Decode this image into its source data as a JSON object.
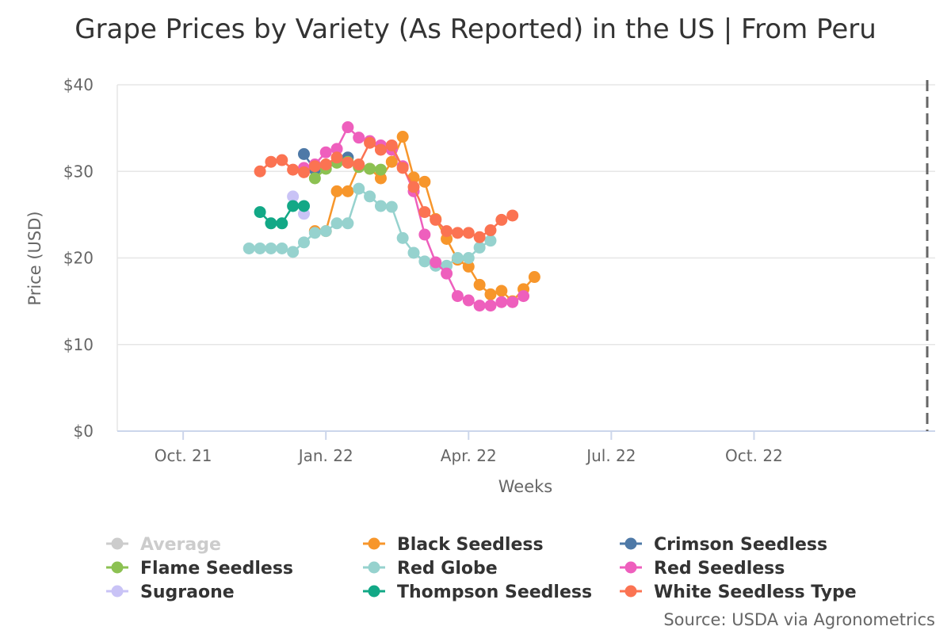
{
  "chart_data": {
    "type": "line",
    "title": "Grape Prices by Variety (As Reported) in the US | From Peru",
    "xlabel": "Weeks",
    "ylabel": "Price (USD)",
    "x_ticks": [
      "Oct. 21",
      "Jan. 22",
      "Apr. 22",
      "Jul. 22",
      "Oct. 22"
    ],
    "y_ticks": [
      "$0",
      "$10",
      "$20",
      "$30",
      "$40"
    ],
    "ylim": [
      0,
      40
    ],
    "x_unit": "weeks since 2021-10-04 (Oct. 21 tick = 0)",
    "x_range": [
      -6,
      68.5
    ],
    "grid": true,
    "legend_position": "bottom",
    "source": "Source: USDA via Agronometrics",
    "series": [
      {
        "name": "Average",
        "color": "#cccccc",
        "hidden": true,
        "points": []
      },
      {
        "name": "Black Seedless",
        "color": "#f7962b",
        "points": [
          [
            12,
            23.1
          ],
          [
            13,
            23.1
          ],
          [
            14,
            27.7
          ],
          [
            15,
            27.7
          ],
          [
            16,
            30.6
          ],
          [
            17,
            30.3
          ],
          [
            18,
            29.2
          ],
          [
            19,
            31.1
          ],
          [
            20,
            34.0
          ],
          [
            21,
            29.3
          ],
          [
            22,
            28.8
          ],
          [
            23,
            24.5
          ],
          [
            24,
            22.2
          ],
          [
            25,
            19.8
          ],
          [
            26,
            19.0
          ],
          [
            27,
            16.9
          ],
          [
            28,
            15.8
          ],
          [
            29,
            16.2
          ],
          [
            30,
            15.0
          ],
          [
            31,
            16.4
          ],
          [
            32,
            17.8
          ]
        ]
      },
      {
        "name": "Crimson Seedless",
        "color": "#4e79a7",
        "points": [
          [
            11,
            32.0
          ],
          [
            12,
            30.2
          ],
          [
            15,
            31.6
          ]
        ]
      },
      {
        "name": "Flame Seedless",
        "color": "#8cc152",
        "points": [
          [
            12,
            29.2
          ],
          [
            13,
            30.3
          ],
          [
            14,
            31.0
          ],
          [
            15,
            31.1
          ],
          [
            16,
            30.5
          ],
          [
            17,
            30.3
          ],
          [
            18,
            30.2
          ]
        ]
      },
      {
        "name": "Red Globe",
        "color": "#96d2ce",
        "points": [
          [
            6,
            21.1
          ],
          [
            7,
            21.1
          ],
          [
            8,
            21.1
          ],
          [
            9,
            21.1
          ],
          [
            10,
            20.7
          ],
          [
            11,
            21.8
          ],
          [
            12,
            22.9
          ],
          [
            13,
            23.1
          ],
          [
            14,
            24.0
          ],
          [
            15,
            24.0
          ],
          [
            16,
            28.0
          ],
          [
            17,
            27.1
          ],
          [
            18,
            26.0
          ],
          [
            19,
            25.9
          ],
          [
            20,
            22.3
          ],
          [
            21,
            20.6
          ],
          [
            22,
            19.6
          ],
          [
            23,
            19.1
          ],
          [
            24,
            19.1
          ],
          [
            25,
            20.0
          ],
          [
            26,
            20.0
          ],
          [
            27,
            21.2
          ],
          [
            28,
            22.0
          ]
        ]
      },
      {
        "name": "Red Seedless",
        "color": "#ee5fbd",
        "points": [
          [
            11,
            30.4
          ],
          [
            12,
            30.8
          ],
          [
            13,
            32.2
          ],
          [
            14,
            32.6
          ],
          [
            15,
            35.1
          ],
          [
            16,
            33.9
          ],
          [
            17,
            33.5
          ],
          [
            18,
            33.0
          ],
          [
            19,
            32.5
          ],
          [
            20,
            30.6
          ],
          [
            21,
            27.7
          ],
          [
            22,
            22.7
          ],
          [
            23,
            19.5
          ],
          [
            24,
            18.2
          ],
          [
            25,
            15.6
          ],
          [
            26,
            15.1
          ],
          [
            27,
            14.5
          ],
          [
            28,
            14.5
          ],
          [
            29,
            14.9
          ],
          [
            30,
            14.9
          ],
          [
            31,
            15.6
          ]
        ]
      },
      {
        "name": "Sugraone",
        "color": "#c9c3f6",
        "points": [
          [
            10,
            27.1
          ],
          [
            11,
            25.1
          ]
        ]
      },
      {
        "name": "Thompson Seedless",
        "color": "#12a886",
        "points": [
          [
            7,
            25.3
          ],
          [
            8,
            24.0
          ],
          [
            9,
            24.0
          ],
          [
            10,
            26.0
          ],
          [
            11,
            26.0
          ]
        ]
      },
      {
        "name": "White Seedless Type",
        "color": "#fb7352",
        "points": [
          [
            7,
            30.0
          ],
          [
            8,
            31.1
          ],
          [
            9,
            31.3
          ],
          [
            10,
            30.2
          ],
          [
            11,
            29.9
          ],
          [
            12,
            30.6
          ],
          [
            13,
            30.8
          ],
          [
            14,
            31.6
          ],
          [
            15,
            31.0
          ],
          [
            16,
            30.8
          ],
          [
            17,
            33.3
          ],
          [
            18,
            32.5
          ],
          [
            19,
            33.0
          ],
          [
            20,
            30.4
          ],
          [
            21,
            28.2
          ],
          [
            22,
            25.3
          ],
          [
            23,
            24.4
          ],
          [
            24,
            23.1
          ],
          [
            25,
            22.9
          ],
          [
            26,
            22.9
          ],
          [
            27,
            22.4
          ],
          [
            28,
            23.2
          ],
          [
            29,
            24.4
          ],
          [
            30,
            24.9
          ]
        ]
      }
    ]
  }
}
